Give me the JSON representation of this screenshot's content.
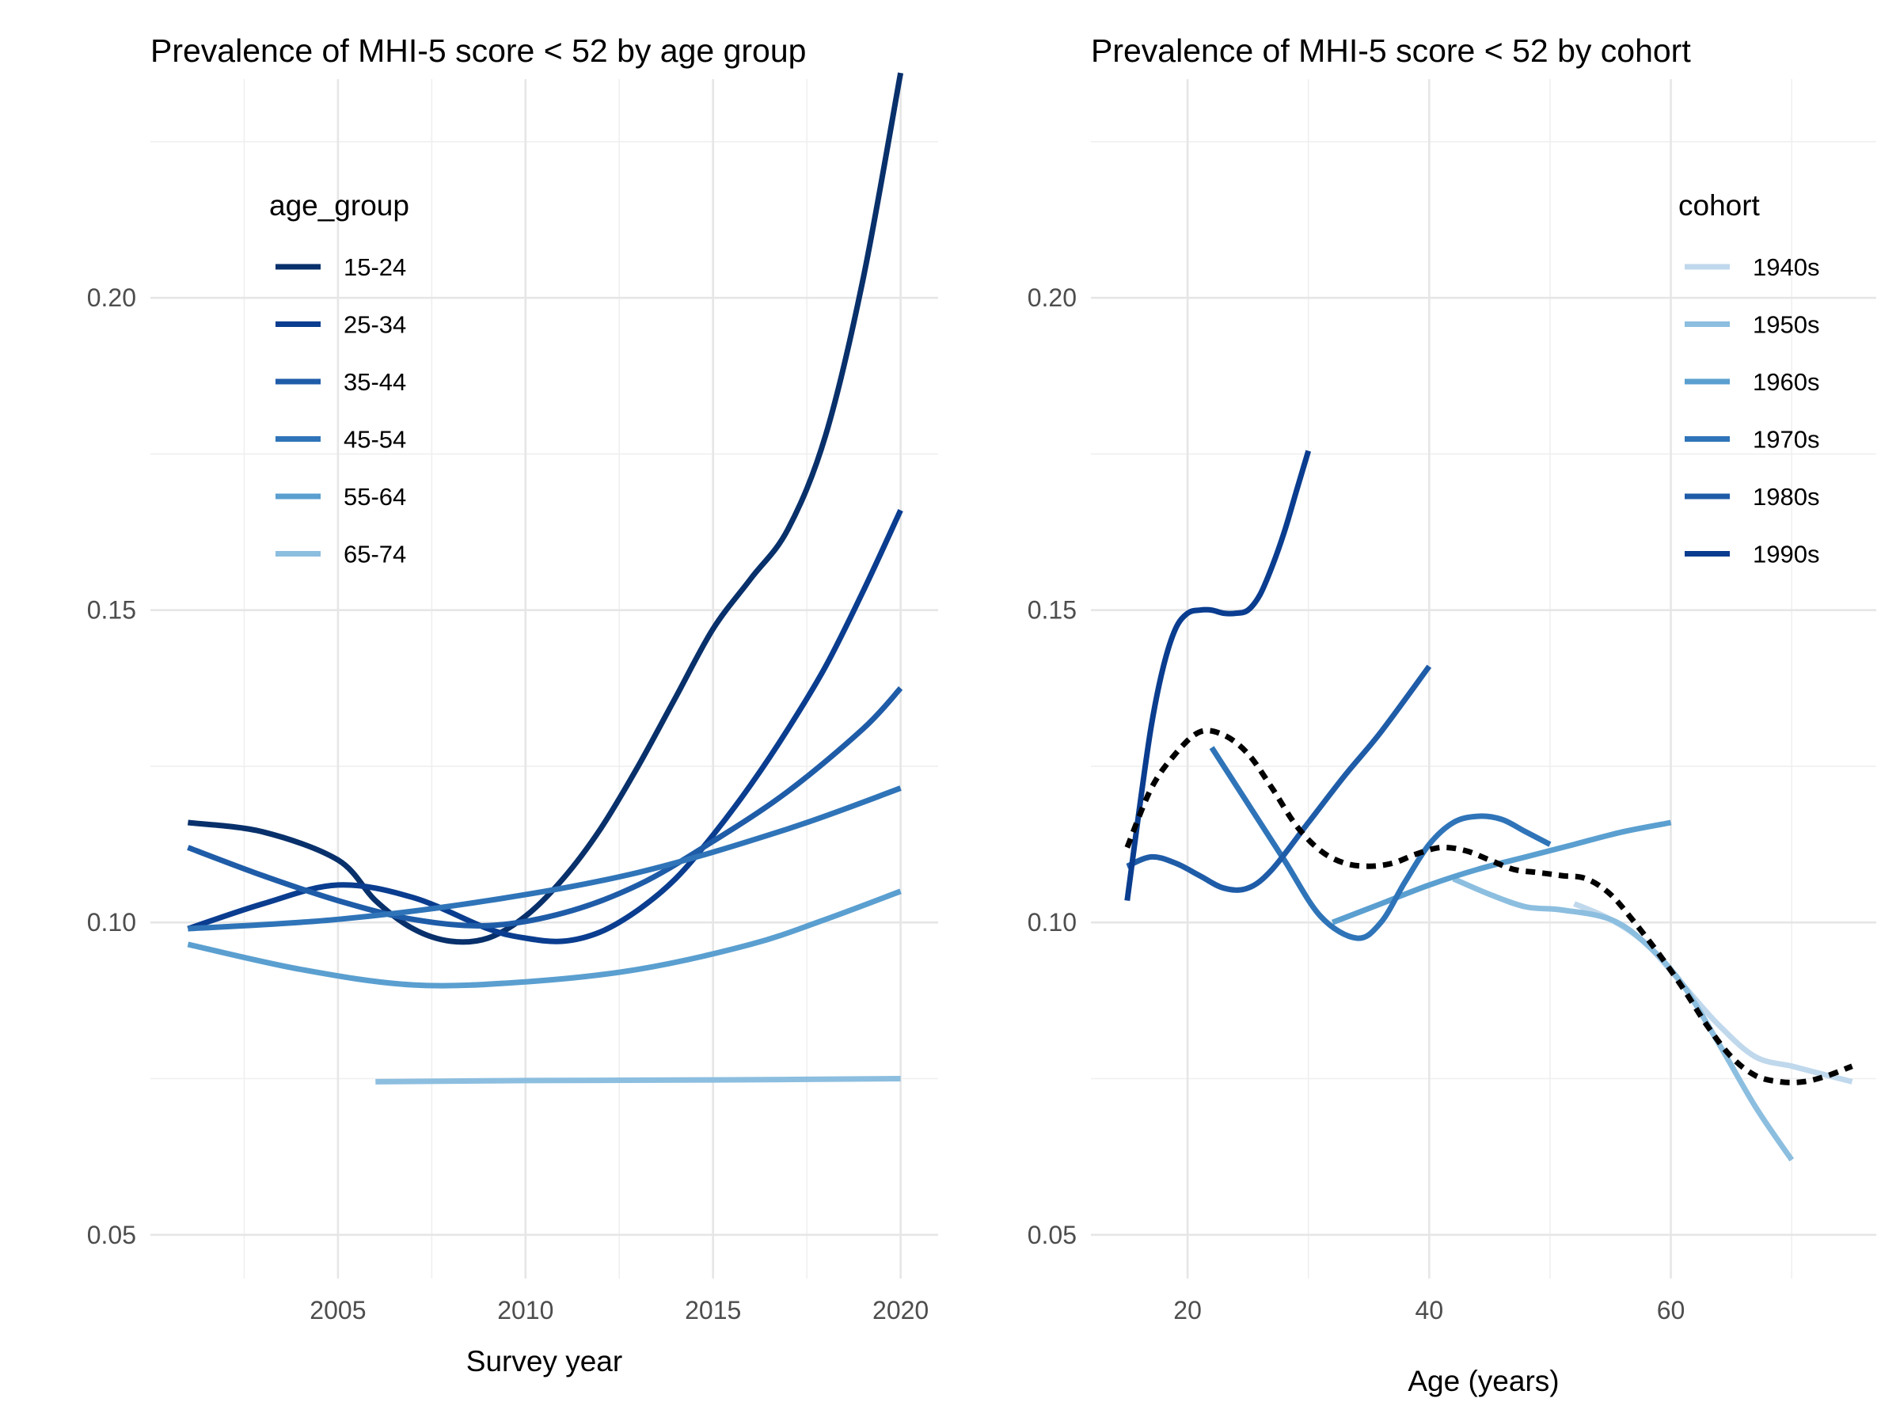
{
  "chart_data": [
    {
      "type": "line",
      "title": "Prevalence of MHI-5 score < 52 by age group",
      "xlabel": "Survey year",
      "ylabel": "",
      "xlim": [
        2000,
        2021
      ],
      "ylim": [
        0.043,
        0.235
      ],
      "x_ticks": [
        2005,
        2010,
        2015,
        2020
      ],
      "x_tick_labels": [
        "2005",
        "2010",
        "2015",
        "2020"
      ],
      "y_ticks": [
        0.05,
        0.1,
        0.15,
        0.2
      ],
      "y_tick_labels": [
        "0.05",
        "0.10",
        "0.15",
        "0.20"
      ],
      "grid": true,
      "legend": {
        "title": "age_group",
        "position": "top-left"
      },
      "series": [
        {
          "name": "15-24",
          "color": "#08306b",
          "x": [
            2001,
            2003,
            2005,
            2006,
            2007,
            2008,
            2009,
            2010,
            2011,
            2012,
            2013,
            2014,
            2015,
            2016,
            2017,
            2018,
            2019,
            2020
          ],
          "y": [
            0.116,
            0.1145,
            0.11,
            0.1035,
            0.099,
            0.097,
            0.0975,
            0.101,
            0.107,
            0.115,
            0.125,
            0.136,
            0.147,
            0.155,
            0.163,
            0.178,
            0.203,
            0.236
          ]
        },
        {
          "name": "25-34",
          "color": "#0a3d8f",
          "x": [
            2001,
            2003,
            2005,
            2007,
            2009,
            2010,
            2011,
            2012,
            2013,
            2014,
            2015,
            2016,
            2017,
            2018,
            2019,
            2020
          ],
          "y": [
            0.099,
            0.103,
            0.106,
            0.104,
            0.099,
            0.0975,
            0.097,
            0.0985,
            0.102,
            0.107,
            0.114,
            0.122,
            0.131,
            0.141,
            0.153,
            0.166
          ]
        },
        {
          "name": "35-44",
          "color": "#1f5ca8",
          "x": [
            2001,
            2003,
            2005,
            2007,
            2009,
            2011,
            2013,
            2015,
            2017,
            2019,
            2020
          ],
          "y": [
            0.112,
            0.1075,
            0.1035,
            0.1005,
            0.0995,
            0.1015,
            0.106,
            0.113,
            0.121,
            0.131,
            0.1375
          ]
        },
        {
          "name": "45-54",
          "color": "#2f74b8",
          "x": [
            2001,
            2005,
            2009,
            2013,
            2017,
            2020
          ],
          "y": [
            0.099,
            0.1005,
            0.1035,
            0.108,
            0.115,
            0.1215
          ]
        },
        {
          "name": "55-64",
          "color": "#5a9fd0",
          "x": [
            2001,
            2004,
            2007,
            2010,
            2013,
            2016,
            2018,
            2020
          ],
          "y": [
            0.0965,
            0.0925,
            0.09,
            0.0905,
            0.0925,
            0.0965,
            0.1005,
            0.105
          ]
        },
        {
          "name": "65-74",
          "color": "#8cbedf",
          "x": [
            2006,
            2010,
            2015,
            2020
          ],
          "y": [
            0.0745,
            0.0747,
            0.0748,
            0.075
          ]
        }
      ]
    },
    {
      "type": "line",
      "title": "Prevalence of MHI-5 score < 52 by cohort",
      "xlabel": "Age (years)",
      "ylabel": "",
      "xlim": [
        12,
        77
      ],
      "ylim": [
        0.043,
        0.235
      ],
      "x_ticks": [
        20,
        40,
        60
      ],
      "x_tick_labels": [
        "20",
        "40",
        "60"
      ],
      "y_ticks": [
        0.05,
        0.1,
        0.15,
        0.2
      ],
      "y_tick_labels": [
        "0.05",
        "0.10",
        "0.15",
        "0.20"
      ],
      "grid": true,
      "legend": {
        "title": "cohort",
        "position": "top-right"
      },
      "series": [
        {
          "name": "1940s",
          "color": "#c0d8ec",
          "x": [
            52,
            55,
            58,
            61,
            64,
            67,
            70,
            72,
            75
          ],
          "y": [
            0.103,
            0.1005,
            0.0965,
            0.09,
            0.0835,
            0.0785,
            0.077,
            0.076,
            0.0745
          ]
        },
        {
          "name": "1950s",
          "color": "#8cbedf",
          "x": [
            42,
            45,
            48,
            51,
            55,
            58,
            61,
            64,
            67,
            70
          ],
          "y": [
            0.107,
            0.1045,
            0.1025,
            0.102,
            0.1005,
            0.0965,
            0.09,
            0.0805,
            0.0705,
            0.062
          ]
        },
        {
          "name": "1960s",
          "color": "#5a9fd0",
          "x": [
            32,
            36,
            40,
            44,
            48,
            52,
            56,
            60
          ],
          "y": [
            0.1,
            0.103,
            0.106,
            0.1085,
            0.1105,
            0.1125,
            0.1145,
            0.116
          ]
        },
        {
          "name": "1970s",
          "color": "#2f74b8",
          "x": [
            22,
            25,
            28,
            31,
            34,
            36,
            38,
            40,
            42,
            44,
            46,
            48,
            50
          ],
          "y": [
            0.128,
            0.119,
            0.11,
            0.101,
            0.0975,
            0.1,
            0.1065,
            0.1125,
            0.116,
            0.117,
            0.1165,
            0.1145,
            0.1125
          ]
        },
        {
          "name": "1980s",
          "color": "#1f5ca8",
          "x": [
            15,
            17,
            19,
            21,
            23,
            25,
            27,
            30,
            33,
            36,
            40
          ],
          "y": [
            0.109,
            0.1105,
            0.1095,
            0.1075,
            0.1055,
            0.1055,
            0.1085,
            0.116,
            0.1235,
            0.1305,
            0.141
          ]
        },
        {
          "name": "1990s",
          "color": "#0a3d8f",
          "x": [
            15,
            16,
            17,
            18,
            19,
            20,
            21,
            22,
            23,
            24,
            25,
            26,
            27,
            28,
            29,
            30
          ],
          "y": [
            0.1035,
            0.118,
            0.1315,
            0.141,
            0.147,
            0.1495,
            0.15,
            0.15,
            0.1495,
            0.1495,
            0.15,
            0.1525,
            0.157,
            0.1625,
            0.169,
            0.1755
          ]
        },
        {
          "name": "",
          "color": "#000000",
          "dashed": true,
          "x": [
            15,
            17,
            19,
            21,
            23,
            25,
            27,
            29,
            31,
            33,
            35,
            37,
            39,
            41,
            43,
            45,
            47,
            49,
            51,
            53,
            55,
            57,
            59,
            61,
            63,
            65,
            67,
            69,
            71,
            73,
            75
          ],
          "y": [
            0.112,
            0.1215,
            0.127,
            0.1305,
            0.13,
            0.127,
            0.1215,
            0.1155,
            0.1115,
            0.1095,
            0.109,
            0.1095,
            0.111,
            0.112,
            0.1115,
            0.11,
            0.1085,
            0.108,
            0.1075,
            0.107,
            0.1045,
            0.1,
            0.095,
            0.0895,
            0.0835,
            0.0785,
            0.0755,
            0.0745,
            0.0745,
            0.0755,
            0.077
          ]
        }
      ]
    }
  ]
}
